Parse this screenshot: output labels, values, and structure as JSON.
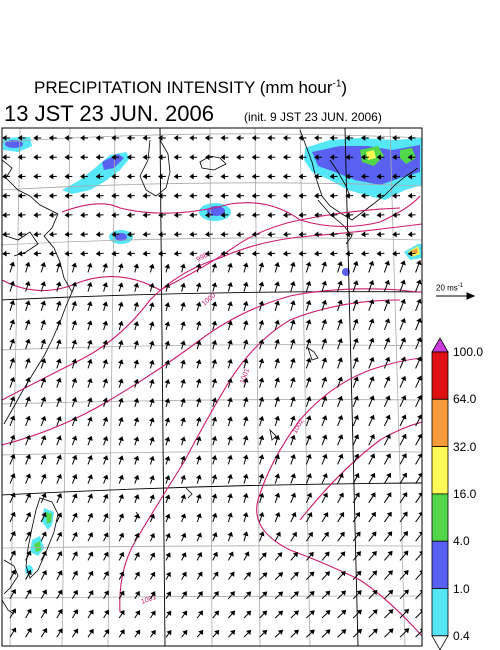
{
  "header": {
    "title_main": "PRECIPITATION INTENSITY (mm hour",
    "title_exp": "-1",
    "title_close": ")",
    "valid_time": "13 JST 23 JUN. 2006",
    "init_time": "(init. 9 JST 23 JUN. 2006)"
  },
  "reference_vector": {
    "label_main": "20 ms",
    "label_exp": "-1"
  },
  "colorbar": {
    "levels": [
      "100.0",
      "64.0",
      "32.0",
      "16.0",
      "4.0",
      "1.0",
      "0.4"
    ],
    "colors": [
      "#dd1111",
      "#f79b3a",
      "#fffa55",
      "#52d64a",
      "#5a60f0",
      "#55e6f7"
    ],
    "top_color": "#c63ed6",
    "bottom_color": "#ffffff"
  },
  "isobars": {
    "labels": [
      "998",
      "1000",
      "1001",
      "1002",
      "1001"
    ],
    "color": "#cc1c6f"
  },
  "wind_field": {
    "color": "#000000"
  },
  "colors": {
    "graticule": "#aaaaaa",
    "coast": "#000000",
    "frame": "#000000"
  }
}
